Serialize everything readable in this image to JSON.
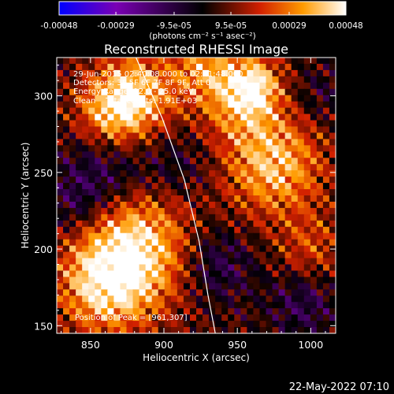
{
  "colorbar": {
    "tick_labels": [
      "-0.00048",
      "-0.00029",
      "-9.5e-05",
      "9.5e-05",
      "0.00029",
      "0.00048"
    ],
    "tick_values": [
      -0.00048,
      -0.00029,
      -9.5e-05,
      9.5e-05,
      0.00029,
      0.00048
    ],
    "unit_label": "(photons cm⁻² s⁻¹ asec⁻²)",
    "range": [
      -0.00048,
      0.00048
    ],
    "colors": [
      "#0000ff",
      "#7a00b4",
      "#000000",
      "#d22000",
      "#ff9b00",
      "#ffffff"
    ]
  },
  "chart_data": {
    "type": "heatmap",
    "title": "Reconstructed RHESSI Image",
    "xlabel": "Heliocentric X (arcsec)",
    "ylabel": "Heliocentric Y (arcsec)",
    "xlim": [
      827,
      1017
    ],
    "ylim": [
      145,
      325
    ],
    "xticks": [
      850,
      900,
      950,
      1000
    ],
    "yticks": [
      150,
      200,
      250,
      300
    ],
    "limb_line": [
      [
        881,
        325
      ],
      [
        899,
        285
      ],
      [
        914,
        245
      ],
      [
        924,
        205
      ],
      [
        930,
        170
      ],
      [
        935,
        145
      ]
    ],
    "annotations": [
      "29-Jun-2015 02:40:08.000 to 02:41:48.000",
      "Detectors: 3F 5F 6F 7F 8F 9F, Att 0",
      "Energy Range: 12.0 - 25.0 keV",
      "Clean    Total counts: 1.91E+03"
    ],
    "peak_label": "Position of Peak = [961,307]",
    "peak": [
      961,
      307
    ],
    "sources": [
      {
        "x": 880,
        "y": 300,
        "amp": 0.9,
        "s": 20
      },
      {
        "x": 862,
        "y": 288,
        "amp": 0.55,
        "s": 16
      },
      {
        "x": 880,
        "y": 200,
        "amp": 1.0,
        "s": 28
      },
      {
        "x": 858,
        "y": 175,
        "amp": 0.7,
        "s": 22
      },
      {
        "x": 975,
        "y": 255,
        "amp": 0.85,
        "s": 24
      },
      {
        "x": 950,
        "y": 300,
        "amp": 0.7,
        "s": 20
      },
      {
        "x": 961,
        "y": 307,
        "amp": 0.6,
        "s": 12
      },
      {
        "x": 925,
        "y": 320,
        "amp": 0.5,
        "s": 14
      },
      {
        "x": 1000,
        "y": 200,
        "amp": 0.4,
        "s": 16
      },
      {
        "x": 840,
        "y": 228,
        "amp": -0.35,
        "s": 16
      },
      {
        "x": 860,
        "y": 250,
        "amp": -0.45,
        "s": 20
      },
      {
        "x": 908,
        "y": 255,
        "amp": -0.3,
        "s": 18
      },
      {
        "x": 935,
        "y": 190,
        "amp": -0.45,
        "s": 18
      },
      {
        "x": 995,
        "y": 165,
        "amp": -0.4,
        "s": 16
      },
      {
        "x": 1005,
        "y": 300,
        "amp": -0.25,
        "s": 14
      }
    ]
  },
  "footer": {
    "date_stamp": "22-May-2022 07:10"
  }
}
